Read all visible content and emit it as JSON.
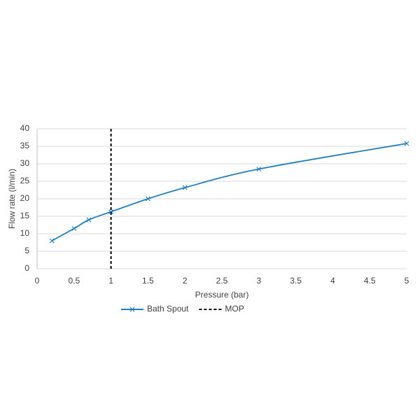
{
  "chart_data": {
    "type": "line",
    "x_label": "Pressure (bar)",
    "y_label": "Flow rate (l/min)",
    "series": [
      {
        "name": "Bath Spout",
        "color": "#1f7ec2",
        "marker": "x",
        "dashed": false,
        "x": [
          0.2,
          0.5,
          0.7,
          1,
          1.5,
          2,
          3,
          5
        ],
        "values": [
          8,
          11.5,
          14,
          16.3,
          20,
          23.2,
          28.5,
          35.8
        ]
      },
      {
        "name": "MOP",
        "color": "#000000",
        "marker": "none",
        "dashed": true,
        "x": [
          1,
          1
        ],
        "values": [
          0,
          40
        ]
      }
    ],
    "xlim": [
      0,
      5
    ],
    "xticks": [
      0,
      0.5,
      1,
      1.5,
      2,
      2.5,
      3,
      3.5,
      4,
      4.5,
      5
    ],
    "ylim": [
      0,
      40
    ],
    "yticks": [
      0,
      5,
      10,
      15,
      20,
      25,
      30,
      35,
      40
    ],
    "grid": true,
    "legend": "bottom"
  }
}
